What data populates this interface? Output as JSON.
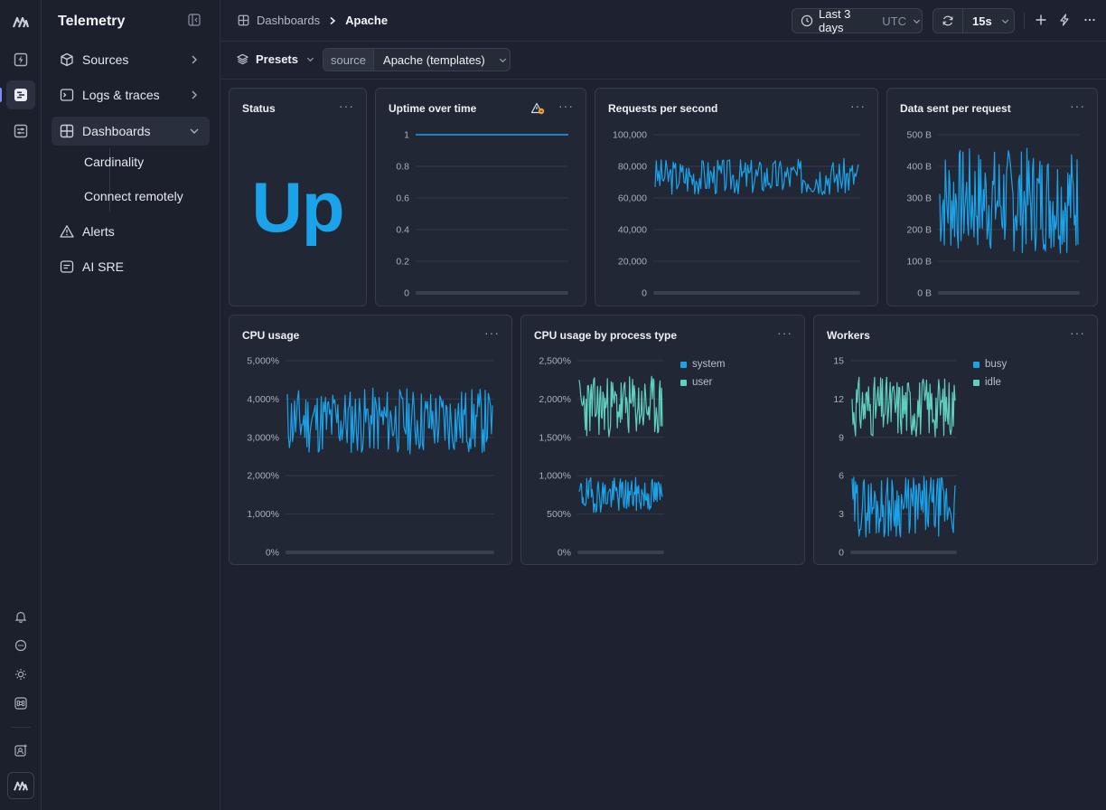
{
  "app": {
    "title": "Telemetry"
  },
  "sidebar": {
    "items": [
      {
        "label": "Sources",
        "icon": "cube-icon"
      },
      {
        "label": "Logs & traces",
        "icon": "terminal-icon"
      },
      {
        "label": "Dashboards",
        "icon": "dashboard-grid-icon",
        "expanded": true
      },
      {
        "label": "Alerts",
        "icon": "warning-triangle-icon"
      },
      {
        "label": "AI SRE",
        "icon": "chat-box-icon"
      }
    ],
    "subitems": [
      {
        "label": "Cardinality"
      },
      {
        "label": "Connect remotely"
      }
    ]
  },
  "header": {
    "breadcrumb": [
      "Dashboards",
      "Apache"
    ],
    "timerange": {
      "label": "Last 3 days",
      "tz": "UTC"
    },
    "refresh": {
      "interval": "15s"
    }
  },
  "filters": {
    "presets_label": "Presets",
    "source_key": "source",
    "source_value": "Apache (templates)"
  },
  "colors": {
    "accent": "#1aa3e8",
    "series_blue": "#1aa3e8",
    "series_teal": "#5fcfc0"
  },
  "panels": {
    "status": {
      "title": "Status",
      "value": "Up"
    },
    "uptime": {
      "title": "Uptime over time"
    },
    "rps": {
      "title": "Requests per second"
    },
    "data_sent": {
      "title": "Data sent per request"
    },
    "cpu": {
      "title": "CPU usage"
    },
    "cpu_by_type": {
      "title": "CPU usage by process type"
    },
    "workers": {
      "title": "Workers"
    }
  },
  "chart_data": [
    {
      "id": "uptime",
      "type": "line",
      "title": "Uptime over time",
      "yticks": [
        "1",
        "0.8",
        "0.6",
        "0.4",
        "0.2",
        "0"
      ],
      "ylim": [
        0,
        1
      ],
      "grid": true,
      "series": [
        {
          "values": [
            1,
            1
          ],
          "color": "#1aa3e8"
        }
      ]
    },
    {
      "id": "rps",
      "type": "line",
      "title": "Requests per second",
      "yticks": [
        "100,000",
        "80,000",
        "60,000",
        "40,000",
        "20,000",
        "0"
      ],
      "ylim": [
        0,
        100000
      ],
      "grid": true,
      "series": [
        {
          "noise_band": [
            62000,
            85000
          ],
          "color": "#1aa3e8",
          "points": 170,
          "seed": 3
        }
      ]
    },
    {
      "id": "data_sent",
      "type": "line",
      "title": "Data sent per request",
      "yticks": [
        "500 B",
        "400 B",
        "300 B",
        "200 B",
        "100 B",
        "0 B"
      ],
      "ylim": [
        0,
        500
      ],
      "grid": true,
      "series": [
        {
          "noise_band": [
            125,
            460
          ],
          "color": "#1aa3e8",
          "points": 150,
          "seed": 7
        }
      ]
    },
    {
      "id": "cpu",
      "type": "line",
      "title": "CPU usage",
      "yticks": [
        "5,000%",
        "4,000%",
        "3,000%",
        "2,000%",
        "1,000%",
        "0%"
      ],
      "ylim": [
        0,
        5000
      ],
      "grid": true,
      "series": [
        {
          "noise_band": [
            2550,
            4300
          ],
          "color": "#1aa3e8",
          "points": 200,
          "seed": 11
        }
      ]
    },
    {
      "id": "cpu_by_type",
      "type": "line",
      "title": "CPU usage by process type",
      "yticks": [
        "2,500%",
        "2,000%",
        "1,500%",
        "1,000%",
        "500%",
        "0%"
      ],
      "ylim": [
        0,
        2500
      ],
      "grid": true,
      "legend": "top-right",
      "series": [
        {
          "name": "system",
          "noise_band": [
            520,
            980
          ],
          "color": "#1aa3e8",
          "points": 110,
          "seed": 19
        },
        {
          "name": "user",
          "noise_band": [
            1500,
            2300
          ],
          "color": "#5fcfc0",
          "points": 110,
          "seed": 23
        }
      ]
    },
    {
      "id": "workers",
      "type": "line",
      "title": "Workers",
      "yticks": [
        "15",
        "12",
        "9",
        "6",
        "3",
        "0"
      ],
      "ylim": [
        0,
        15
      ],
      "grid": true,
      "legend": "top-right",
      "series": [
        {
          "name": "busy",
          "noise_band": [
            1.2,
            6
          ],
          "color": "#1aa3e8",
          "points": 120,
          "seed": 29
        },
        {
          "name": "idle",
          "noise_band": [
            9,
            13.8
          ],
          "color": "#5fcfc0",
          "points": 120,
          "seed": 31
        }
      ]
    }
  ]
}
